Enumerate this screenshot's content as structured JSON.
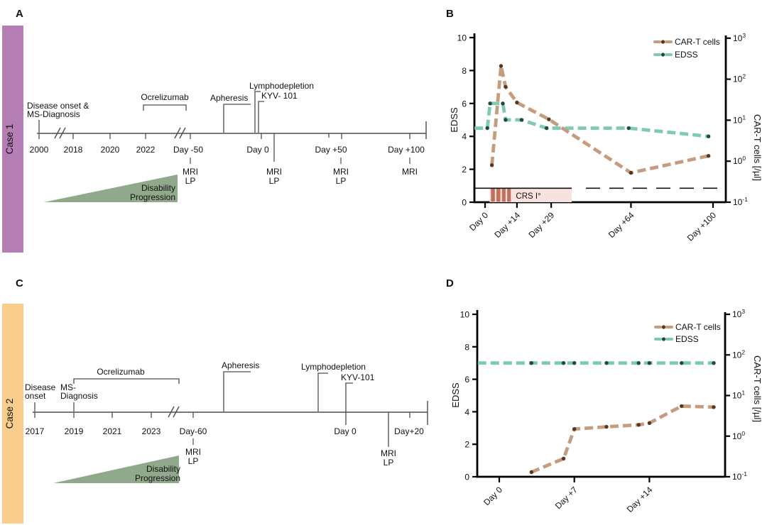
{
  "panel_a": {
    "letter": "A",
    "case_label": "Case 1",
    "case_color": "#B57EB5",
    "onset_line1": "Disease onset &",
    "onset_line2": "MS-Diagnosis",
    "ocrelizumab_label": "Ocrelizumab",
    "apheresis_label": "Apheresis",
    "lymphodepletion_label": "Lymphodepletion",
    "kyv_label": "KYV- 101",
    "tick_labels": [
      "2000",
      "2018",
      "2020",
      "2022",
      "Day -50",
      "Day 0",
      "Day +50",
      "Day +100"
    ],
    "mri_label": "MRI",
    "lp_label": "LP",
    "triangle_line1": "Disability",
    "triangle_line2": "Progression",
    "triangle_color": "#90A98A"
  },
  "panel_b": {
    "letter": "B",
    "legend": [
      {
        "label": "CAR-T cells"
      },
      {
        "label": "EDSS"
      }
    ],
    "ylabel_left": "EDSS",
    "ylabel_right": "CAR-T cells [/µl]",
    "crs_label": "CRS I°"
  },
  "panel_c": {
    "letter": "C",
    "case_label": "Case 2",
    "case_color": "#F8CD8B",
    "disease_line1": "Disease",
    "disease_line2": "onset",
    "ms_line1": "MS-",
    "ms_line2": "Diagnosis",
    "ocrelizumab_label": "Ocrelizumab",
    "apheresis_label": "Apheresis",
    "lymphodepletion_label": "Lymphodepletion",
    "kyv_label": "KYV-101",
    "tick_labels": [
      "2017",
      "2019",
      "2021",
      "2023",
      "Day-60",
      "Day 0",
      "Day+20"
    ],
    "mri_label": "MRI",
    "lp_label": "LP",
    "triangle_line1": "Disability",
    "triangle_line2": "Progression",
    "triangle_color": "#90A98A"
  },
  "panel_d": {
    "letter": "D",
    "legend": [
      {
        "label": "CAR-T cells"
      },
      {
        "label": "EDSS"
      }
    ],
    "ylabel_left": "EDSS",
    "ylabel_right": "CAR-T cells [/µl]"
  },
  "chart_data": [
    {
      "panel": "B",
      "type": "line",
      "title": "",
      "x_unit": "days relative to CAR-T infusion",
      "ylabel_left": "EDSS",
      "ylabel_right": "CAR-T cells [/µl]",
      "ylim_left": [
        0,
        10
      ],
      "ylim_right_log10": [
        -1,
        3
      ],
      "legend_position": "top-right",
      "xticks": [
        {
          "label": "Day 0",
          "day": 0
        },
        {
          "label": "Day +14",
          "day": 14
        },
        {
          "label": "Day +29",
          "day": 29
        },
        {
          "label": "Day +64",
          "day": 64
        },
        {
          "label": "Day +100",
          "day": 100
        }
      ],
      "yticks_left": [
        0,
        2,
        4,
        6,
        8,
        10
      ],
      "yticks_right_exponents": [
        -1,
        0,
        1,
        2,
        3
      ],
      "series": [
        {
          "name": "EDSS",
          "axis": "left",
          "color": "#7FCBB2",
          "dot_color": "#1F4A3C",
          "line_start_day": -4.6,
          "points": [
            {
              "day": 1,
              "value": 4.5
            },
            {
              "day": 2.2,
              "value": 6
            },
            {
              "day": 7.8,
              "value": 6
            },
            {
              "day": 9,
              "value": 5
            },
            {
              "day": 16,
              "value": 5
            },
            {
              "day": 27,
              "value": 4.5
            },
            {
              "day": 63,
              "value": 4.5
            },
            {
              "day": 98,
              "value": 4
            }
          ]
        },
        {
          "name": "CAR-T cells",
          "axis": "right",
          "color": "#C69C7E",
          "dot_color": "#59361E",
          "points": [
            {
              "day": 3,
              "value": 0.8
            },
            {
              "day": 7,
              "value": 210
            },
            {
              "day": 9,
              "value": 65
            },
            {
              "day": 14,
              "value": 27
            },
            {
              "day": 28,
              "value": 10.5
            },
            {
              "day": 64,
              "value": 0.52
            },
            {
              "day": 98,
              "value": 1.35
            }
          ]
        }
      ],
      "dashed_line": {
        "edss": 0.85
      },
      "crs_band": {
        "label": "CRS I°",
        "day_start": 2,
        "day_end": 38,
        "band_color": "#F7E2DD",
        "bar_color": "#C2715C",
        "bars": [
          [
            2.6,
            4.3
          ],
          [
            5.0,
            6.7
          ],
          [
            7.4,
            9.0
          ],
          [
            9.7,
            11.3
          ]
        ]
      }
    },
    {
      "panel": "D",
      "type": "line",
      "title": "",
      "x_unit": "days relative to CAR-T infusion",
      "ylabel_left": "EDSS",
      "ylabel_right": "CAR-T cells [/µl]",
      "ylim_left": [
        0,
        10
      ],
      "ylim_right_log10": [
        -1,
        3
      ],
      "legend_position": "top-right",
      "xticks": [
        {
          "label": "Day 0",
          "day": 0
        },
        {
          "label": "Day +7",
          "day": 7
        },
        {
          "label": "Day +14",
          "day": 14
        }
      ],
      "yticks_left": [
        0,
        2,
        4,
        6,
        8,
        10
      ],
      "yticks_right_exponents": [
        -1,
        0,
        1,
        2,
        3
      ],
      "series": [
        {
          "name": "EDSS",
          "axis": "left",
          "color": "#7FCBB2",
          "dot_color": "#1F4A3C",
          "line_start_day": -2,
          "points": [
            {
              "day": 3,
              "value": 7
            },
            {
              "day": 6,
              "value": 7
            },
            {
              "day": 7,
              "value": 7
            },
            {
              "day": 10,
              "value": 7
            },
            {
              "day": 13,
              "value": 7
            },
            {
              "day": 14,
              "value": 7
            },
            {
              "day": 17,
              "value": 7
            },
            {
              "day": 20,
              "value": 7
            }
          ]
        },
        {
          "name": "CAR-T cells",
          "axis": "right",
          "color": "#C69C7E",
          "dot_color": "#59361E",
          "points": [
            {
              "day": 3,
              "value": 0.13
            },
            {
              "day": 6,
              "value": 0.28
            },
            {
              "day": 7,
              "value": 1.5
            },
            {
              "day": 10,
              "value": 1.7
            },
            {
              "day": 13,
              "value": 1.9
            },
            {
              "day": 14,
              "value": 2.1
            },
            {
              "day": 17,
              "value": 5.5
            },
            {
              "day": 20,
              "value": 5.2
            }
          ]
        }
      ]
    }
  ]
}
